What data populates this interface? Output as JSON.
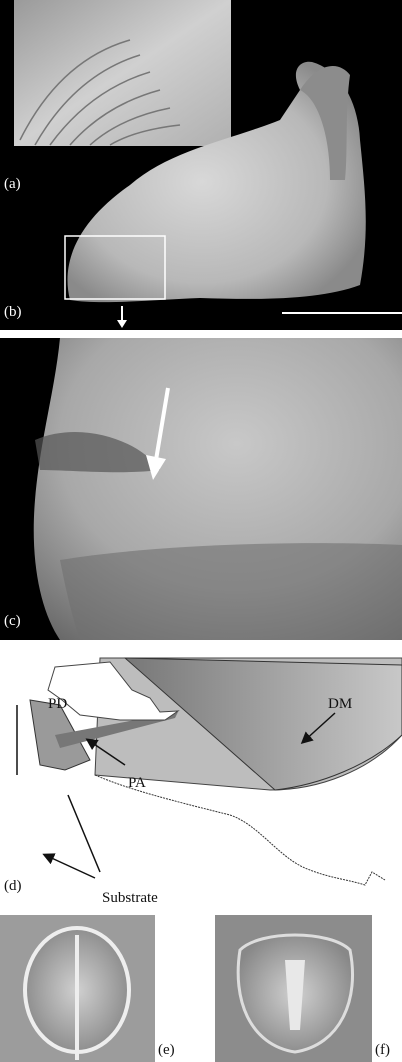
{
  "panel_labels": [
    "(a)",
    "(b)",
    "(c)",
    "(d)",
    "(e)",
    "(f)"
  ],
  "annotations": {
    "pd": "PD",
    "dm": "DM",
    "pa": "PA",
    "substrate": "Substrate"
  }
}
